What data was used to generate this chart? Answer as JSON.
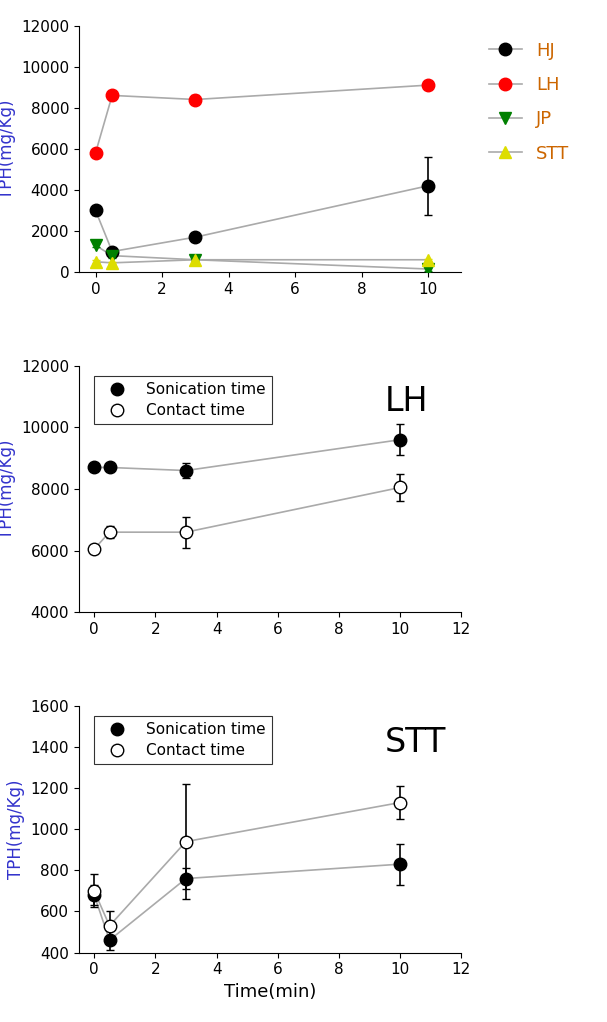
{
  "panel1": {
    "ylabel": "TPH(mg/Kg)",
    "ylim": [
      0,
      12000
    ],
    "yticks": [
      0,
      2000,
      4000,
      6000,
      8000,
      10000,
      12000
    ],
    "xlim": [
      -0.5,
      11
    ],
    "xticks": [
      0,
      2,
      4,
      6,
      8,
      10
    ],
    "series": {
      "HJ": {
        "x": [
          0,
          0.5,
          3,
          10
        ],
        "y": [
          3000,
          1000,
          1700,
          4200
        ],
        "yerr": [
          200,
          150,
          200,
          1400
        ],
        "color": "black",
        "marker": "o"
      },
      "LH": {
        "x": [
          0,
          0.5,
          3,
          10
        ],
        "y": [
          5800,
          8600,
          8400,
          9100
        ],
        "yerr": [
          200,
          200,
          200,
          200
        ],
        "color": "red",
        "marker": "o"
      },
      "JP": {
        "x": [
          0,
          0.5,
          3,
          10
        ],
        "y": [
          1300,
          800,
          600,
          150
        ],
        "yerr": [
          100,
          100,
          80,
          80
        ],
        "color": "green",
        "marker": "v"
      },
      "STT": {
        "x": [
          0,
          0.5,
          3,
          10
        ],
        "y": [
          500,
          450,
          600,
          600
        ],
        "yerr": [
          80,
          50,
          50,
          50
        ],
        "color": "#dddd00",
        "marker": "^"
      }
    }
  },
  "panel2": {
    "label": "LH",
    "ylabel": "TPH(mg/Kg)",
    "ylim": [
      4000,
      12000
    ],
    "yticks": [
      4000,
      6000,
      8000,
      10000,
      12000
    ],
    "xlim": [
      -0.5,
      12
    ],
    "xticks": [
      0,
      2,
      4,
      6,
      8,
      10,
      12
    ],
    "sonication": {
      "x": [
        0,
        0.5,
        3,
        10
      ],
      "y": [
        8700,
        8700,
        8600,
        9600
      ],
      "yerr": [
        100,
        100,
        250,
        500
      ]
    },
    "contact": {
      "x": [
        0,
        0.5,
        3,
        10
      ],
      "y": [
        6050,
        6600,
        6600,
        8050
      ],
      "yerr": [
        100,
        200,
        500,
        450
      ]
    }
  },
  "panel3": {
    "label": "STT",
    "ylabel": "TPH(mg/Kg)",
    "xlabel": "Time(min)",
    "ylim": [
      400,
      1600
    ],
    "yticks": [
      400,
      600,
      800,
      1000,
      1200,
      1400,
      1600
    ],
    "xlim": [
      -0.5,
      12
    ],
    "xticks": [
      0,
      2,
      4,
      6,
      8,
      10,
      12
    ],
    "sonication": {
      "x": [
        0,
        0.5,
        3,
        10
      ],
      "y": [
        680,
        460,
        760,
        830
      ],
      "yerr": [
        50,
        50,
        50,
        100
      ]
    },
    "contact": {
      "x": [
        0,
        0.5,
        3,
        10
      ],
      "y": [
        700,
        530,
        940,
        1130
      ],
      "yerr": [
        80,
        70,
        280,
        80
      ]
    }
  },
  "line_color": "#aaaaaa",
  "marker_size": 9,
  "line_width": 1.2,
  "elinewidth": 1.2,
  "capsize": 3,
  "ylabel_color": "#3333cc",
  "legend_label_color": "#cc6600",
  "legend_items": [
    {
      "name": "HJ",
      "color": "black",
      "marker": "o",
      "filled": true
    },
    {
      "name": "LH",
      "color": "red",
      "marker": "o",
      "filled": true
    },
    {
      "name": "JP",
      "color": "green",
      "marker": "v",
      "filled": true
    },
    {
      "name": "STT",
      "color": "#dddd00",
      "marker": "^",
      "filled": true
    }
  ]
}
